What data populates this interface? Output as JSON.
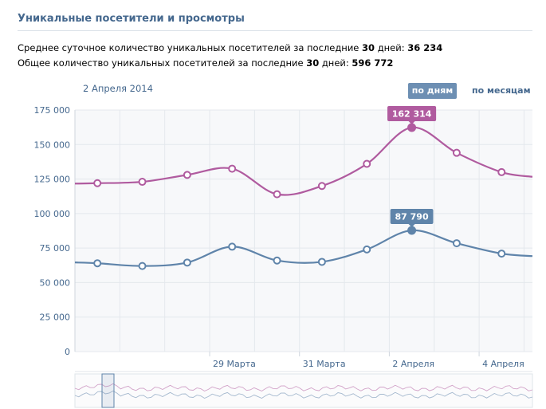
{
  "header": {
    "title": "Уникальные посетители и просмотры"
  },
  "stats": {
    "line1_prefix": "Среднее суточное количество уникальных посетителей за последние ",
    "line1_days": "30",
    "line1_mid": " дней: ",
    "line1_value": "36 234",
    "line2_prefix": "Общее количество уникальных посетителей за последние ",
    "line2_days": "30",
    "line2_mid": " дней: ",
    "line2_value": "596 772"
  },
  "chart_header": {
    "date": "2 Апреля 2014",
    "mode_days": "по дням",
    "mode_months": "по месяцам"
  },
  "colors": {
    "views": "#b05b9f",
    "visitors": "#5f84aa",
    "grid": "#e4e8ed",
    "plot_bg": "#f7f8fa",
    "axis_text": "#45688e"
  },
  "chart_data": {
    "type": "line",
    "title": "",
    "xlabel": "",
    "ylabel": "",
    "ylim": [
      0,
      175000
    ],
    "y_ticks": [
      0,
      25000,
      50000,
      75000,
      100000,
      125000,
      150000,
      175000
    ],
    "y_tick_labels": [
      "0",
      "25 000",
      "50 000",
      "75 000",
      "100 000",
      "125 000",
      "150 000",
      "175 000"
    ],
    "x_tick_labels": [
      "29 Марта",
      "31 Марта",
      "2 Апреля",
      "4 Апреля"
    ],
    "x_tick_days": [
      "2014-03-29",
      "2014-03-31",
      "2014-04-02",
      "2014-04-04"
    ],
    "x": [
      "2014-03-26 12:00",
      "2014-03-27 12:00",
      "2014-03-28 12:00",
      "2014-03-29 12:00",
      "2014-03-30 12:00",
      "2014-03-31 12:00",
      "2014-04-01 12:00",
      "2014-04-02 12:00",
      "2014-04-03 12:00",
      "2014-04-04 12:00"
    ],
    "series": [
      {
        "color": "#b05b9f",
        "values": [
          122000,
          123000,
          128000,
          132500,
          114000,
          120000,
          136000,
          162314,
          144000,
          130000
        ]
      },
      {
        "color": "#5f84aa",
        "values": [
          64000,
          62000,
          64500,
          76000,
          66000,
          65000,
          74000,
          87790,
          78500,
          71000
        ]
      }
    ],
    "highlight": {
      "x": "2014-04-02 12:00",
      "labels": [
        "162 314",
        "87 790"
      ]
    },
    "grid": true,
    "legend": "none"
  }
}
